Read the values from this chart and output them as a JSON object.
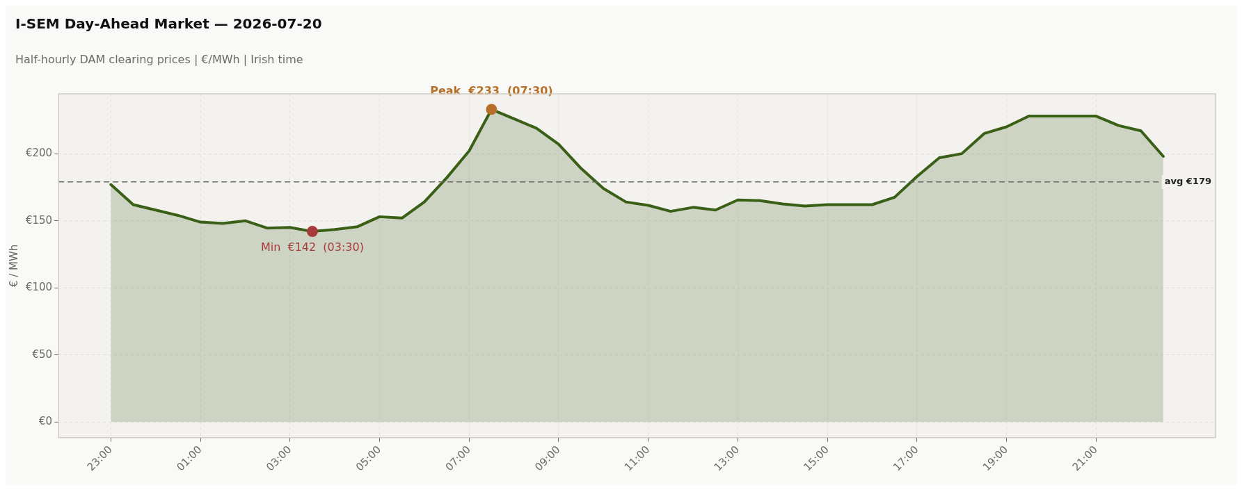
{
  "chart_data": {
    "type": "area",
    "title": "I-SEM Day-Ahead Market — 2026-07-20",
    "subtitle": "Half-hourly DAM clearing prices  |  €/MWh  |  Irish time",
    "ylabel": "€ / MWh",
    "x": [
      "2026-07-19T23:00",
      "2026-07-19T23:30",
      "2026-07-20T00:00",
      "2026-07-20T00:30",
      "2026-07-20T01:00",
      "2026-07-20T01:30",
      "2026-07-20T02:00",
      "2026-07-20T02:30",
      "2026-07-20T03:00",
      "2026-07-20T03:30",
      "2026-07-20T04:00",
      "2026-07-20T04:30",
      "2026-07-20T05:00",
      "2026-07-20T05:30",
      "2026-07-20T06:00",
      "2026-07-20T06:30",
      "2026-07-20T07:00",
      "2026-07-20T07:30",
      "2026-07-20T08:00",
      "2026-07-20T08:30",
      "2026-07-20T09:00",
      "2026-07-20T09:30",
      "2026-07-20T10:00",
      "2026-07-20T10:30",
      "2026-07-20T11:00",
      "2026-07-20T11:30",
      "2026-07-20T12:00",
      "2026-07-20T12:30",
      "2026-07-20T13:00",
      "2026-07-20T13:30",
      "2026-07-20T14:00",
      "2026-07-20T14:30",
      "2026-07-20T15:00",
      "2026-07-20T15:30",
      "2026-07-20T16:00",
      "2026-07-20T16:30",
      "2026-07-20T17:00",
      "2026-07-20T17:30",
      "2026-07-20T18:00",
      "2026-07-20T18:30",
      "2026-07-20T19:00",
      "2026-07-20T19:30",
      "2026-07-20T20:00",
      "2026-07-20T20:30",
      "2026-07-20T21:00",
      "2026-07-20T21:30",
      "2026-07-20T22:00",
      "2026-07-20T22:30"
    ],
    "series": [
      {
        "color": "#3a5f17",
        "values": [
          177,
          162,
          158,
          154,
          149,
          148,
          150,
          144.5,
          145,
          142,
          143.5,
          145.5,
          153,
          152,
          164,
          182,
          202,
          233,
          226,
          219,
          207,
          189,
          174,
          164,
          161.5,
          157,
          160,
          158,
          165.5,
          165,
          162.5,
          161,
          162,
          162,
          162,
          167.5,
          183,
          197,
          200,
          215,
          220,
          228,
          228,
          228,
          228,
          221,
          217,
          198
        ]
      }
    ],
    "xlim": [
      "2026-07-19T21:50",
      "2026-07-20T23:40"
    ],
    "xticks": [
      {
        "value": "2026-07-19T23:00",
        "label": "23:00"
      },
      {
        "value": "2026-07-20T01:00",
        "label": "01:00"
      },
      {
        "value": "2026-07-20T03:00",
        "label": "03:00"
      },
      {
        "value": "2026-07-20T05:00",
        "label": "05:00"
      },
      {
        "value": "2026-07-20T07:00",
        "label": "07:00"
      },
      {
        "value": "2026-07-20T09:00",
        "label": "09:00"
      },
      {
        "value": "2026-07-20T11:00",
        "label": "11:00"
      },
      {
        "value": "2026-07-20T13:00",
        "label": "13:00"
      },
      {
        "value": "2026-07-20T15:00",
        "label": "15:00"
      },
      {
        "value": "2026-07-20T17:00",
        "label": "17:00"
      },
      {
        "value": "2026-07-20T19:00",
        "label": "19:00"
      },
      {
        "value": "2026-07-20T21:00",
        "label": "21:00"
      }
    ],
    "ylim": [
      -11.6,
      244.6
    ],
    "yticks": [
      {
        "value": 0,
        "label": "€0"
      },
      {
        "value": 50,
        "label": "€50"
      },
      {
        "value": 100,
        "label": "€100"
      },
      {
        "value": 150,
        "label": "€150"
      },
      {
        "value": 200,
        "label": "€200"
      }
    ],
    "ref_lines": [
      {
        "axis": "y",
        "value": 179,
        "label": "avg €179",
        "color": "#666666",
        "line_style": "dashed"
      }
    ],
    "annotations": [
      {
        "text": "Peak  €233  (07:30)",
        "x": "2026-07-20T07:30",
        "y": 233
      },
      {
        "text": "Min  €142  (03:30)",
        "x": "2026-07-20T03:30",
        "y": 142
      }
    ],
    "grid": true,
    "legend": false,
    "marker": "none",
    "line_style": "solid"
  }
}
